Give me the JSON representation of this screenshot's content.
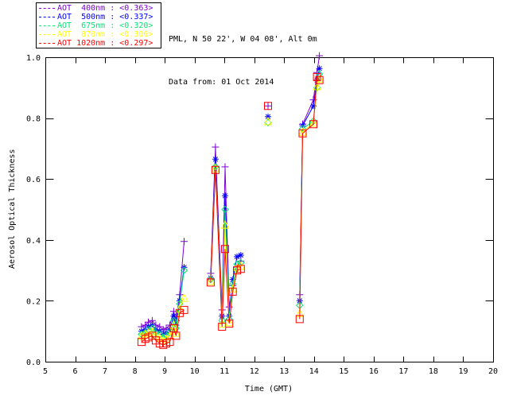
{
  "header": {
    "line1": "PML, N 50 22', W 04 08', Alt 0m",
    "line2": "Data from: 01 Oct 2014"
  },
  "legend": {
    "items": [
      {
        "label": "AOT  400nm : <0.363>",
        "color": "#7f00d4"
      },
      {
        "label": "AOT  500nm : <0.337>",
        "color": "#0000ff"
      },
      {
        "label": "AOT  675nm : <0.320>",
        "color": "#00e673"
      },
      {
        "label": "AOT  870nm : <0.306>",
        "color": "#ffff00"
      },
      {
        "label": "AOT 1020nm : <0.297>",
        "color": "#ff0000"
      }
    ]
  },
  "chart_data": {
    "type": "line",
    "title": "",
    "xlabel": "Time (GMT)",
    "ylabel": "Aerosol Optical Thickness",
    "xlim": [
      5,
      20
    ],
    "ylim": [
      0.0,
      1.0
    ],
    "xticks": [
      5,
      6,
      7,
      8,
      9,
      10,
      11,
      12,
      13,
      14,
      15,
      16,
      17,
      18,
      19,
      20
    ],
    "xtick_labels": [
      "5",
      "6",
      "7",
      "8",
      "9",
      "10",
      "11",
      "12",
      "13",
      "14",
      "15",
      "16",
      "17",
      "18",
      "19",
      "20"
    ],
    "yticks": [
      0.0,
      0.2,
      0.4,
      0.6,
      0.8,
      1.0
    ],
    "ytick_labels": [
      "0.0",
      "0.2",
      "0.4",
      "0.6",
      "0.8",
      "1.0"
    ],
    "grid": false,
    "legend_position": "top-left-outside",
    "series": [
      {
        "name": "AOT 400nm",
        "mean": "<0.363>",
        "color": "#7f00d4",
        "marker": "plus",
        "segments": [
          {
            "t": [
              8.22,
              8.35,
              8.45,
              8.58,
              8.7,
              8.83,
              8.95,
              9.05,
              9.17,
              9.3,
              9.38,
              9.5,
              9.65
            ],
            "v": [
              0.115,
              0.12,
              0.13,
              0.135,
              0.12,
              0.115,
              0.105,
              0.11,
              0.12,
              0.165,
              0.135,
              0.22,
              0.395
            ]
          },
          {
            "t": [
              10.54,
              10.7,
              10.92,
              11.02,
              11.16,
              11.28,
              11.42,
              11.55
            ],
            "v": [
              0.29,
              0.705,
              0.17,
              0.64,
              0.18,
              0.25,
              0.31,
              0.33
            ]
          },
          {
            "t": [
              12.46
            ],
            "v": [
              0.84
            ]
          },
          {
            "t": [
              13.52,
              13.62,
              13.98,
              14.1,
              14.18
            ],
            "v": [
              0.22,
              0.78,
              0.86,
              0.95,
              1.005
            ]
          }
        ]
      },
      {
        "name": "AOT 500nm",
        "mean": "<0.337>",
        "color": "#0000ff",
        "marker": "asterisk",
        "segments": [
          {
            "t": [
              8.22,
              8.35,
              8.45,
              8.58,
              8.7,
              8.83,
              8.95,
              9.05,
              9.17,
              9.3,
              9.38,
              9.5,
              9.65
            ],
            "v": [
              0.1,
              0.105,
              0.115,
              0.12,
              0.105,
              0.1,
              0.09,
              0.095,
              0.105,
              0.15,
              0.12,
              0.2,
              0.31
            ]
          },
          {
            "t": [
              10.54,
              10.7,
              10.92,
              11.02,
              11.16,
              11.28,
              11.42,
              11.55
            ],
            "v": [
              0.275,
              0.665,
              0.15,
              0.545,
              0.15,
              0.27,
              0.345,
              0.35
            ]
          },
          {
            "t": [
              12.46
            ],
            "v": [
              0.805
            ]
          },
          {
            "t": [
              13.52,
              13.62,
              13.98,
              14.1,
              14.18
            ],
            "v": [
              0.2,
              0.775,
              0.84,
              0.925,
              0.963
            ]
          }
        ]
      },
      {
        "name": "AOT 675nm",
        "mean": "<0.320>",
        "color": "#00e673",
        "marker": "diamond",
        "segments": [
          {
            "t": [
              8.22,
              8.35,
              8.45,
              8.58,
              8.7,
              8.83,
              8.95,
              9.05,
              9.17,
              9.3,
              9.38,
              9.5,
              9.65
            ],
            "v": [
              0.09,
              0.095,
              0.105,
              0.11,
              0.095,
              0.09,
              0.08,
              0.085,
              0.095,
              0.135,
              0.11,
              0.19,
              0.3
            ]
          },
          {
            "t": [
              10.54,
              10.7,
              10.92,
              11.02,
              11.16,
              11.28,
              11.42,
              11.55
            ],
            "v": [
              0.27,
              0.64,
              0.135,
              0.5,
              0.14,
              0.255,
              0.32,
              0.325
            ]
          },
          {
            "t": [
              12.46
            ],
            "v": [
              0.785
            ]
          },
          {
            "t": [
              13.52,
              13.62,
              13.98,
              14.1,
              14.18
            ],
            "v": [
              0.185,
              0.765,
              0.79,
              0.9,
              0.945
            ]
          }
        ]
      },
      {
        "name": "AOT 870nm",
        "mean": "<0.306>",
        "color": "#ffff00",
        "marker": "triangle",
        "segments": [
          {
            "t": [
              8.22,
              8.35,
              8.45,
              8.58,
              8.7,
              8.83,
              8.95,
              9.05,
              9.17,
              9.3,
              9.38,
              9.5,
              9.65
            ],
            "v": [
              0.085,
              0.09,
              0.095,
              0.1,
              0.085,
              0.08,
              0.07,
              0.075,
              0.085,
              0.12,
              0.095,
              0.175,
              0.21
            ]
          },
          {
            "t": [
              10.54,
              10.7,
              10.92,
              11.02,
              11.16,
              11.28,
              11.42,
              11.55
            ],
            "v": [
              0.265,
              0.635,
              0.125,
              0.45,
              0.13,
              0.24,
              0.31,
              0.315
            ]
          },
          {
            "t": [
              12.46
            ],
            "v": [
              0.79
            ]
          },
          {
            "t": [
              13.52,
              13.62,
              13.98,
              14.1,
              14.18
            ],
            "v": [
              0.16,
              0.755,
              0.785,
              0.905,
              0.93
            ]
          }
        ]
      },
      {
        "name": "AOT 1020nm",
        "mean": "<0.297>",
        "color": "#ff0000",
        "marker": "square",
        "segments": [
          {
            "t": [
              8.22,
              8.35,
              8.45,
              8.58,
              8.7,
              8.83,
              8.95,
              9.05,
              9.17,
              9.3,
              9.38,
              9.5,
              9.65
            ],
            "v": [
              0.065,
              0.075,
              0.08,
              0.085,
              0.07,
              0.06,
              0.055,
              0.06,
              0.065,
              0.11,
              0.085,
              0.16,
              0.17
            ]
          },
          {
            "t": [
              10.54,
              10.7,
              10.92,
              11.02,
              11.16,
              11.28,
              11.42,
              11.55
            ],
            "v": [
              0.26,
              0.63,
              0.115,
              0.37,
              0.125,
              0.23,
              0.3,
              0.305
            ]
          },
          {
            "t": [
              12.46
            ],
            "v": [
              0.84
            ]
          },
          {
            "t": [
              13.52,
              13.62,
              13.98,
              14.1,
              14.18
            ],
            "v": [
              0.14,
              0.75,
              0.78,
              0.935,
              0.925
            ]
          }
        ]
      }
    ]
  }
}
